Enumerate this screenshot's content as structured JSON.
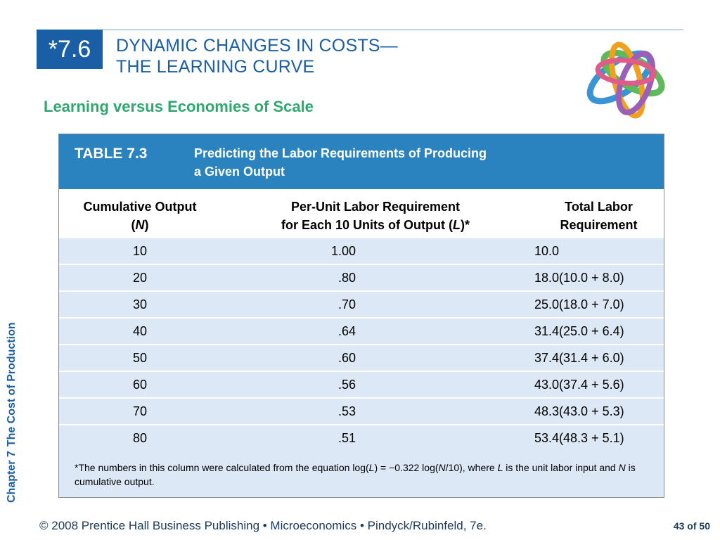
{
  "header": {
    "section_number": "*7.6",
    "title_line1": "DYNAMIC CHANGES IN COSTS—",
    "title_line2": "THE LEARNING CURVE",
    "subtitle": "Learning versus Economies of Scale"
  },
  "side_label": {
    "chapter": "Chapter 7",
    "title": "The Cost of Production"
  },
  "table": {
    "number": "TABLE 7.3",
    "desc_line1": "Predicting the Labor Requirements of Producing",
    "desc_line2": "a Given Output",
    "col1_line1": "Cumulative Output",
    "col1_line2_a": "(",
    "col1_line2_b": "N",
    "col1_line2_c": ")",
    "col2_line1": "Per-Unit Labor Requirement",
    "col2_line2_a": "for Each 10 Units of Output (",
    "col2_line2_b": "L",
    "col2_line2_c": ")*",
    "col3_line1": "Total Labor",
    "col3_line2": "Requirement",
    "rows": [
      [
        "10",
        "1.00",
        "10.0"
      ],
      [
        "20",
        ".80",
        "18.0(10.0 + 8.0)"
      ],
      [
        "30",
        ".70",
        "25.0(18.0 + 7.0)"
      ],
      [
        "40",
        ".64",
        "31.4(25.0 + 6.4)"
      ],
      [
        "50",
        ".60",
        "37.4(31.4 + 6.0)"
      ],
      [
        "60",
        ".56",
        "43.0(37.4 + 5.6)"
      ],
      [
        "70",
        ".53",
        "48.3(43.0 + 5.3)"
      ],
      [
        "80",
        ".51",
        "53.4(48.3 + 5.1)"
      ]
    ],
    "footnote": {
      "p1": "*The numbers in this column were calculated from the equation log(",
      "v1": "L",
      "p2": ") = −0.322 log(",
      "v2": "N",
      "p3": "/10), where ",
      "v3": "L",
      "p4": " is the unit labor input and ",
      "v4": "N",
      "p5": " is cumulative output."
    }
  },
  "footer": {
    "text": "© 2008 Prentice Hall Business Publishing  •  Microeconomics  •  Pindyck/Rubinfeld, 7e.",
    "page_current": "43",
    "page_of": " of ",
    "page_total": "50"
  },
  "colors": {
    "brand_blue": "#1a5fa6",
    "table_header": "#2a83be",
    "row_fill": "#dce8f5",
    "subtitle_green": "#2fa86f"
  },
  "icons": {
    "logo": "interlocking-rings-logo"
  }
}
